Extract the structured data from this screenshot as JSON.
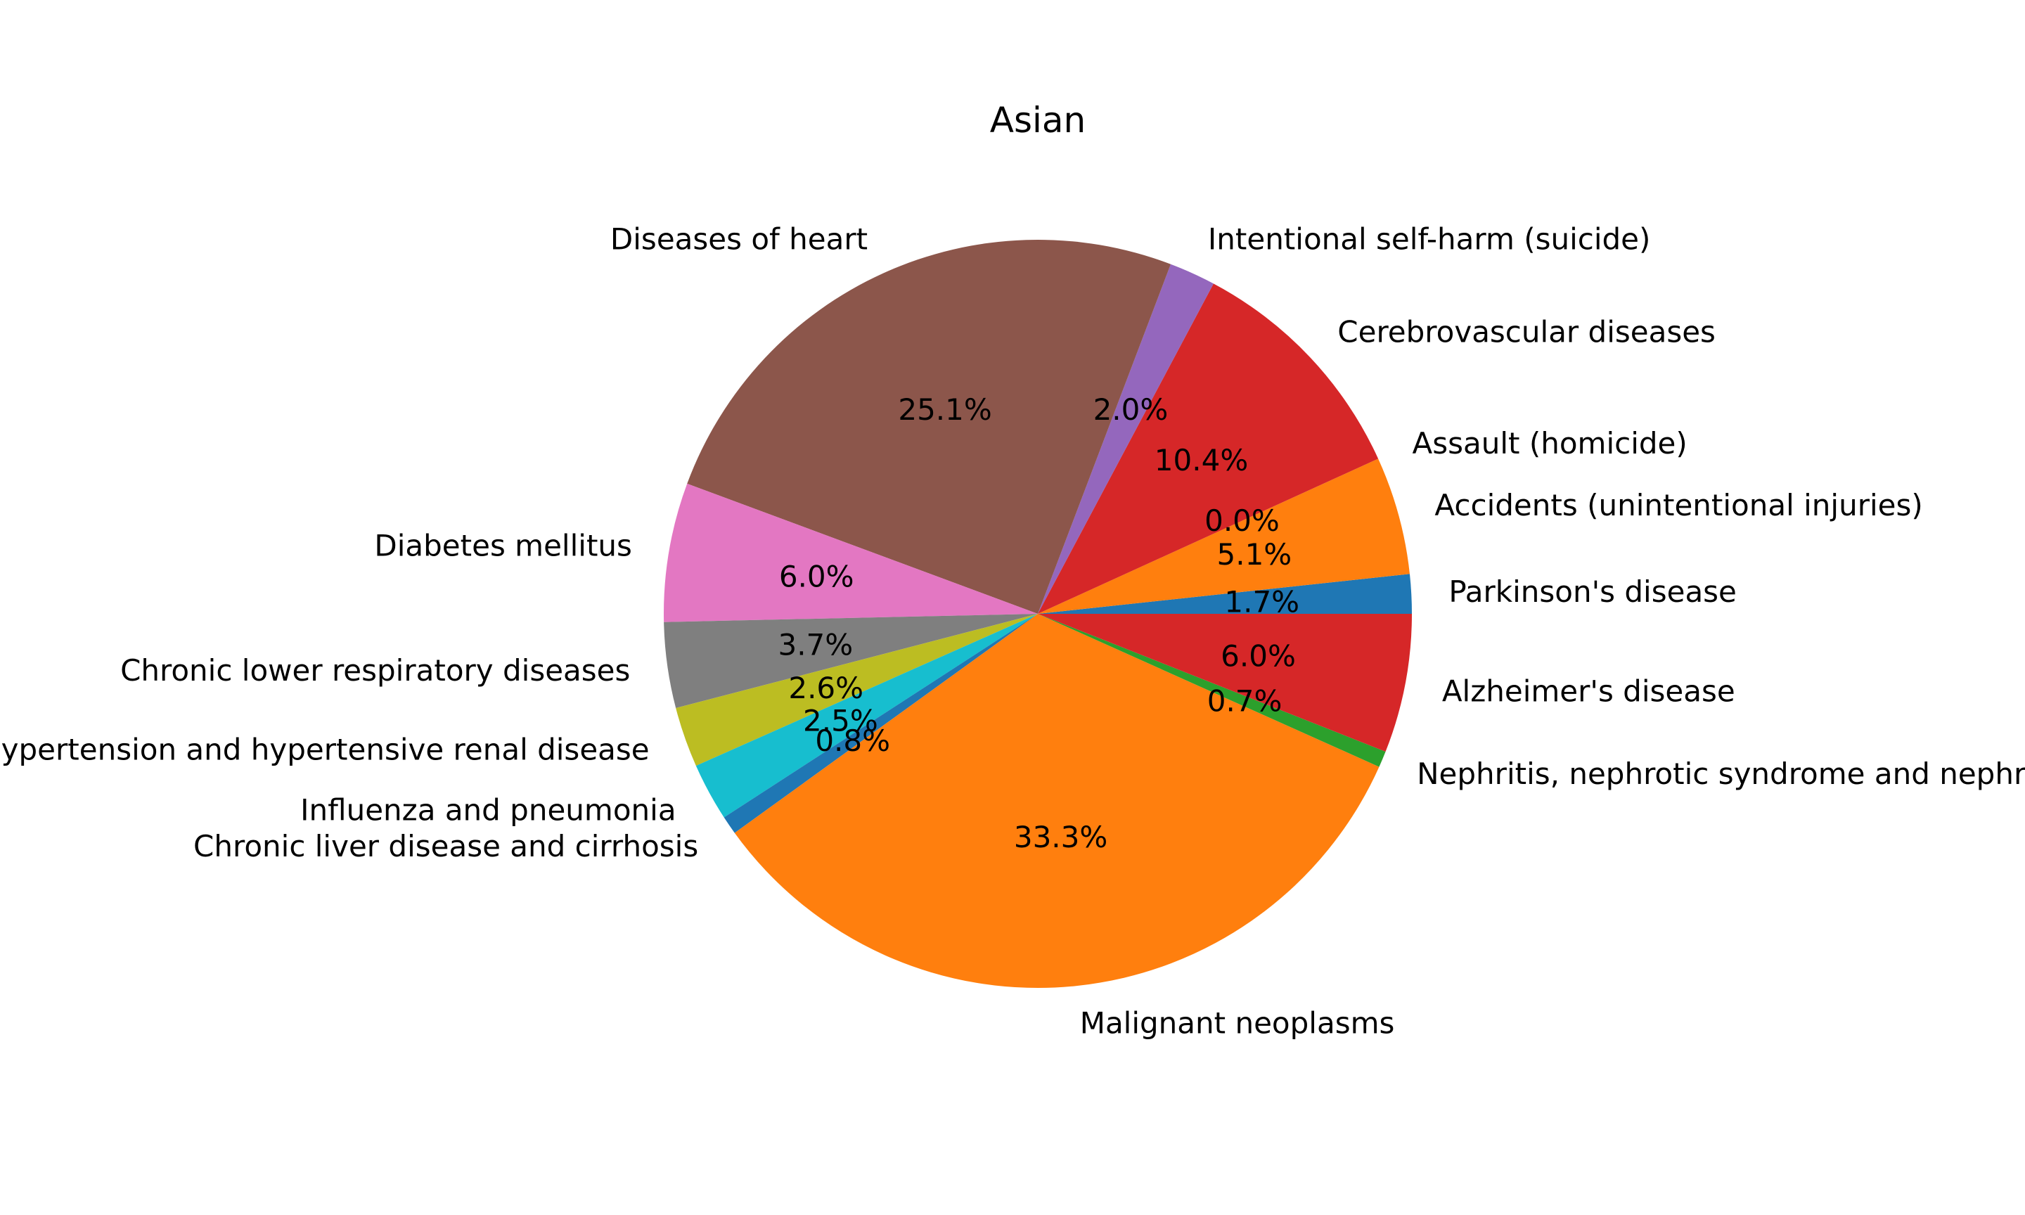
{
  "chart_data": {
    "type": "pie",
    "title": "Asian",
    "start_angle": 0,
    "direction": "counterclockwise",
    "slices": [
      {
        "label": "Parkinson's disease",
        "value": 1.7,
        "pct_label": "1.7%",
        "color": "#1f77b4"
      },
      {
        "label": "Accidents (unintentional injuries)",
        "value": 5.1,
        "pct_label": "5.1%",
        "color": "#ff7f0e"
      },
      {
        "label": "Assault (homicide)",
        "value": 0.0,
        "pct_label": "0.0%",
        "color": "#2ca02c"
      },
      {
        "label": "Cerebrovascular diseases",
        "value": 10.4,
        "pct_label": "10.4%",
        "color": "#d62728"
      },
      {
        "label": "Intentional self-harm (suicide)",
        "value": 2.0,
        "pct_label": "2.0%",
        "color": "#9467bd"
      },
      {
        "label": "Diseases of heart",
        "value": 25.1,
        "pct_label": "25.1%",
        "color": "#8c564b"
      },
      {
        "label": "Diabetes mellitus",
        "value": 6.0,
        "pct_label": "6.0%",
        "color": "#e377c2"
      },
      {
        "label": "Chronic lower respiratory diseases",
        "value": 3.7,
        "pct_label": "3.7%",
        "color": "#7f7f7f"
      },
      {
        "label": "Essential hypertension and hypertensive renal disease",
        "value": 2.6,
        "pct_label": "2.6%",
        "color": "#bcbd22"
      },
      {
        "label": "Influenza and pneumonia",
        "value": 2.5,
        "pct_label": "2.5%",
        "color": "#17becf"
      },
      {
        "label": "Chronic liver disease and cirrhosis",
        "value": 0.8,
        "pct_label": "0.8%",
        "color": "#1f77b4"
      },
      {
        "label": "Malignant neoplasms",
        "value": 33.3,
        "pct_label": "33.3%",
        "color": "#ff7f0e"
      },
      {
        "label": "Nephritis, nephrotic syndrome and nephrosis",
        "value": 0.7,
        "pct_label": "0.7%",
        "color": "#2ca02c"
      },
      {
        "label": "Alzheimer's disease",
        "value": 6.0,
        "pct_label": "6.0%",
        "color": "#d62728"
      }
    ]
  }
}
